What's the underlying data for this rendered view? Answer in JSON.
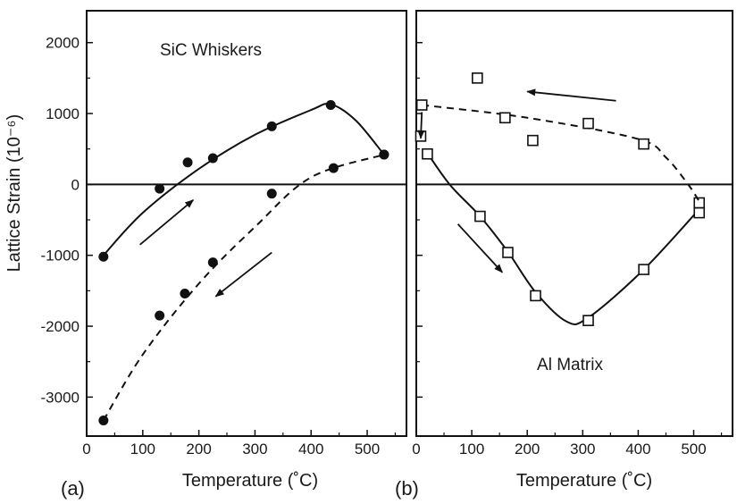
{
  "chart_data": [
    {
      "type": "scatter",
      "panel_label": "(a)",
      "annotation": "SiC Whiskers",
      "xlabel": "Temperature (˚C)",
      "ylabel": "Lattice Strain (10⁻⁶)",
      "xlim": [
        0,
        570
      ],
      "ylim": [
        -3550,
        2450
      ],
      "xticks": [
        0,
        100,
        200,
        300,
        400,
        500
      ],
      "yticks": [
        -3000,
        -2000,
        -1000,
        0,
        1000,
        2000
      ],
      "tick_labels_x": [
        "0",
        "100",
        "200",
        "300",
        "400",
        "500"
      ],
      "tick_labels_y": [
        "-3000",
        "-2000",
        "-1000",
        "0",
        "1000",
        "2000"
      ],
      "marker": "filled-circle",
      "zero_line": true,
      "series": [
        {
          "style": "solid",
          "direction": "heating",
          "points": [
            [
              30,
              -1020
            ],
            [
              130,
              -60
            ],
            [
              180,
              310
            ],
            [
              225,
              370
            ],
            [
              330,
              820
            ],
            [
              435,
              1120
            ],
            [
              530,
              420
            ]
          ],
          "curve": [
            [
              30,
              -1000
            ],
            [
              100,
              -400
            ],
            [
              200,
              220
            ],
            [
              300,
              700
            ],
            [
              400,
              1050
            ],
            [
              435,
              1130
            ],
            [
              480,
              900
            ],
            [
              530,
              420
            ]
          ]
        },
        {
          "style": "dashed",
          "direction": "cooling",
          "points": [
            [
              30,
              -3330
            ],
            [
              130,
              -1850
            ],
            [
              175,
              -1540
            ],
            [
              225,
              -1100
            ],
            [
              330,
              -130
            ],
            [
              440,
              230
            ],
            [
              530,
              420
            ]
          ],
          "curve": [
            [
              30,
              -3330
            ],
            [
              100,
              -2400
            ],
            [
              200,
              -1400
            ],
            [
              300,
              -600
            ],
            [
              400,
              100
            ],
            [
              530,
              420
            ]
          ]
        }
      ],
      "arrows": [
        {
          "direction": "heating",
          "from": [
            95,
            -850
          ],
          "to": [
            190,
            -220
          ]
        },
        {
          "direction": "cooling",
          "from": [
            330,
            -960
          ],
          "to": [
            230,
            -1580
          ]
        }
      ]
    },
    {
      "type": "scatter",
      "panel_label": "(b)",
      "annotation": "Al Matrix",
      "xlabel": "Temperature (˚C)",
      "xlim": [
        0,
        570
      ],
      "ylim": [
        -3550,
        2450
      ],
      "xticks": [
        0,
        100,
        200,
        300,
        400,
        500
      ],
      "tick_labels_x": [
        "0",
        "100",
        "200",
        "300",
        "400",
        "500"
      ],
      "marker": "open-square",
      "zero_line": true,
      "series": [
        {
          "style": "solid",
          "direction": "heating",
          "points": [
            [
              20,
              430
            ],
            [
              115,
              -450
            ],
            [
              165,
              -960
            ],
            [
              215,
              -1570
            ],
            [
              310,
              -1920
            ],
            [
              410,
              -1200
            ],
            [
              510,
              -400
            ],
            [
              510,
              -260
            ]
          ],
          "curve": [
            [
              15,
              500
            ],
            [
              60,
              0
            ],
            [
              115,
              -450
            ],
            [
              165,
              -950
            ],
            [
              215,
              -1520
            ],
            [
              270,
              -1930
            ],
            [
              310,
              -1880
            ],
            [
              410,
              -1200
            ],
            [
              510,
              -350
            ]
          ]
        },
        {
          "style": "dashed",
          "direction": "cooling",
          "points": [
            [
              10,
              1120
            ],
            [
              110,
              1500
            ],
            [
              160,
              940
            ],
            [
              210,
              620
            ],
            [
              310,
              860
            ],
            [
              410,
              570
            ],
            [
              8,
              680
            ]
          ],
          "curve": [
            [
              10,
              1120
            ],
            [
              200,
              940
            ],
            [
              400,
              640
            ],
            [
              450,
              380
            ],
            [
              490,
              0
            ],
            [
              510,
              -240
            ]
          ]
        }
      ],
      "arrows": [
        {
          "direction": "cooling",
          "from": [
            360,
            1180
          ],
          "to": [
            200,
            1310
          ]
        },
        {
          "direction": "heating",
          "from": [
            75,
            -560
          ],
          "to": [
            155,
            -1240
          ]
        },
        {
          "direction": "cooling",
          "from": [
            10,
            1020
          ],
          "to": [
            8,
            650
          ]
        }
      ]
    }
  ]
}
